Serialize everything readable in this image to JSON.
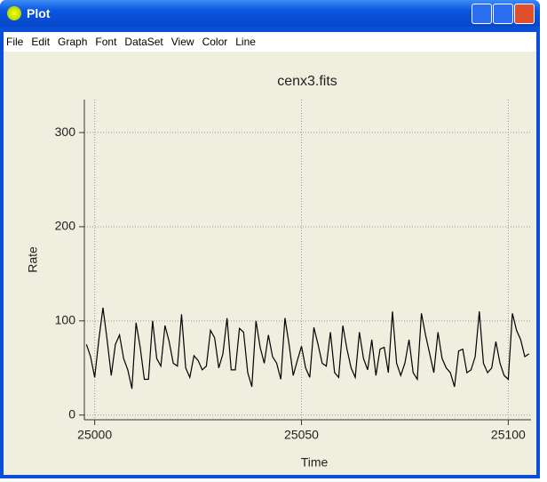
{
  "window": {
    "title": "Plot"
  },
  "menu": {
    "items": [
      "File",
      "Edit",
      "Graph",
      "Font",
      "DataSet",
      "View",
      "Color",
      "Line"
    ]
  },
  "chart_data": {
    "type": "line",
    "title": "cenx3.fits",
    "x_label": "Time",
    "y_label": "Rate",
    "x": [
      24998,
      24999,
      25000,
      25001,
      25002,
      25003,
      25004,
      25005,
      25006,
      25007,
      25008,
      25009,
      25010,
      25011,
      25012,
      25013,
      25014,
      25015,
      25016,
      25017,
      25018,
      25019,
      25020,
      25021,
      25022,
      25023,
      25024,
      25025,
      25026,
      25027,
      25028,
      25029,
      25030,
      25031,
      25032,
      25033,
      25034,
      25035,
      25036,
      25037,
      25038,
      25039,
      25040,
      25041,
      25042,
      25043,
      25044,
      25045,
      25046,
      25047,
      25048,
      25049,
      25050,
      25051,
      25052,
      25053,
      25054,
      25055,
      25056,
      25057,
      25058,
      25059,
      25060,
      25061,
      25062,
      25063,
      25064,
      25065,
      25066,
      25067,
      25068,
      25069,
      25070,
      25071,
      25072,
      25073,
      25074,
      25075,
      25076,
      25077,
      25078,
      25079,
      25080,
      25081,
      25082,
      25083,
      25084,
      25085,
      25086,
      25087,
      25088,
      25089,
      25090,
      25091,
      25092,
      25093,
      25094,
      25095,
      25096,
      25097,
      25098,
      25099,
      25100,
      25101,
      25102,
      25103,
      25104,
      25105
    ],
    "values": [
      75,
      62,
      40,
      80,
      114,
      80,
      42,
      75,
      85,
      60,
      48,
      28,
      98,
      72,
      38,
      38,
      100,
      60,
      52,
      95,
      78,
      55,
      52,
      107,
      50,
      40,
      63,
      58,
      48,
      52,
      90,
      82,
      50,
      65,
      103,
      48,
      48,
      92,
      88,
      45,
      30,
      100,
      72,
      55,
      85,
      62,
      55,
      38,
      103,
      75,
      42,
      58,
      73,
      50,
      40,
      93,
      75,
      55,
      52,
      88,
      45,
      40,
      95,
      70,
      50,
      40,
      88,
      60,
      48,
      80,
      42,
      70,
      72,
      45,
      110,
      55,
      42,
      55,
      80,
      45,
      38,
      108,
      85,
      65,
      45,
      88,
      60,
      50,
      45,
      30,
      68,
      70,
      45,
      48,
      62,
      110,
      55,
      45,
      50,
      78,
      55,
      42,
      38,
      108,
      90,
      80,
      62,
      65
    ],
    "color": "#000000",
    "xlim": [
      24997.5,
      25105.5
    ],
    "xticks": [
      25000,
      25050,
      25100
    ],
    "ylim": [
      -5,
      335
    ],
    "yticks": [
      0,
      100,
      200,
      300
    ],
    "grid": true
  }
}
